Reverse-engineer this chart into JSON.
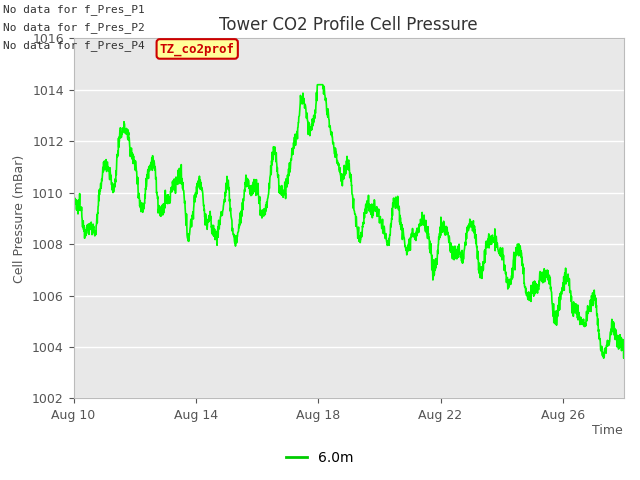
{
  "title": "Tower CO2 Profile Cell Pressure",
  "ylabel": "Cell Pressure (mBar)",
  "xlabel": "Time",
  "ylim": [
    1002,
    1016
  ],
  "yticks": [
    1002,
    1004,
    1006,
    1008,
    1010,
    1012,
    1014,
    1016
  ],
  "xtick_labels": [
    "Aug 10",
    "Aug 14",
    "Aug 18",
    "Aug 22",
    "Aug 26"
  ],
  "xtick_positions": [
    0,
    4,
    8,
    12,
    16
  ],
  "xlim": [
    0,
    18
  ],
  "line_color": "#00ff00",
  "line_width": 1.2,
  "background_color": "#ffffff",
  "plot_bg_color": "#e8e8e8",
  "legend_label": "6.0m",
  "legend_line_color": "#00cc00",
  "no_data_texts": [
    "No data for f_Pres_P1",
    "No data for f_Pres_P2",
    "No data for f_Pres_P4"
  ],
  "annotation_text": "TZ_co2prof",
  "annotation_bg": "#ffff99",
  "annotation_border": "#cc0000",
  "annotation_text_color": "#cc0000",
  "grid_color": "#ffffff",
  "title_fontsize": 12,
  "axis_fontsize": 9,
  "tick_fontsize": 9,
  "nodata_fontsize": 8
}
